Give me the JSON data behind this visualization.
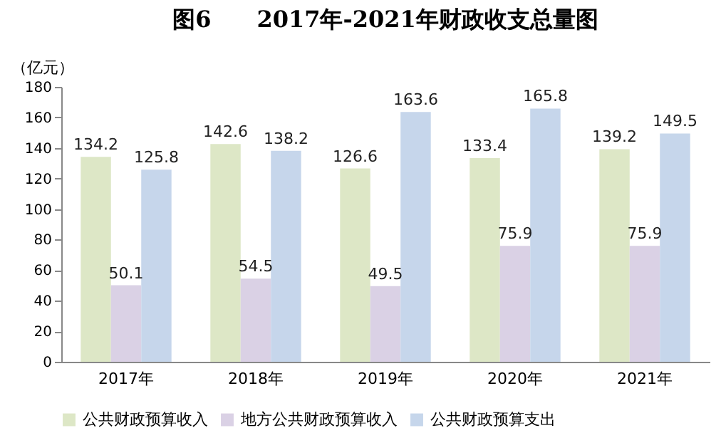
{
  "chart_data": {
    "type": "bar",
    "title": "图6　　2017年-2021年财政收支总量图",
    "ylabel": "（亿元）",
    "categories": [
      "2017年",
      "2018年",
      "2019年",
      "2020年",
      "2021年"
    ],
    "series": [
      {
        "name": "公共财政预算收入",
        "color": "#dde7c6",
        "values": [
          134.2,
          142.6,
          126.6,
          133.4,
          139.2
        ]
      },
      {
        "name": "地方公共财政预算收入",
        "color": "#dad1e5",
        "values": [
          50.1,
          54.5,
          49.5,
          75.9,
          75.9
        ]
      },
      {
        "name": "公共财政预算支出",
        "color": "#c6d6eb",
        "values": [
          125.8,
          138.2,
          163.6,
          165.8,
          149.5
        ]
      }
    ],
    "ylim": [
      0,
      180
    ],
    "yticks": [
      0,
      20,
      40,
      60,
      80,
      100,
      120,
      140,
      160,
      180
    ],
    "grid": false,
    "legend": "bottom",
    "data_labels": true
  }
}
